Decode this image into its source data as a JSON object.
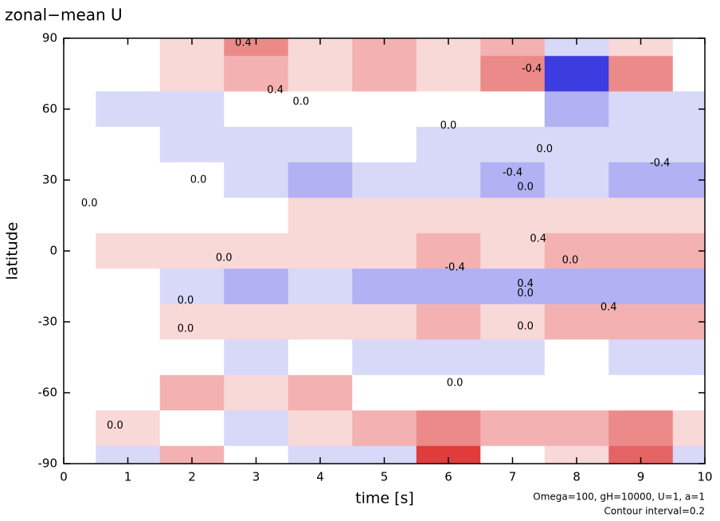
{
  "chart_data": {
    "type": "heatmap",
    "title": "zonal−mean U",
    "x_label": "time [s]",
    "y_label": "latitude",
    "annotations": [
      "Omega=100, gH=10000, U=1, a=1",
      "Contour interval=0.2"
    ],
    "xlim": [
      0,
      10
    ],
    "ylim": [
      -90,
      90
    ],
    "xticks": [
      0,
      1,
      2,
      3,
      4,
      5,
      6,
      7,
      8,
      9,
      10
    ],
    "yticks": [
      -90,
      -60,
      -30,
      0,
      30,
      60,
      90
    ],
    "positive_color": "#e03c3c",
    "negative_color": "#3c3ce0",
    "x": [
      0,
      1,
      2,
      3,
      4,
      5,
      6,
      7,
      8,
      9,
      10
    ],
    "y": [
      90,
      75,
      60,
      45,
      30,
      15,
      0,
      -15,
      -30,
      -45,
      -60,
      -75,
      -90
    ],
    "z": [
      [
        0,
        0,
        0.2,
        0.6,
        0.2,
        0.4,
        0.2,
        0.4,
        -0.2,
        0.2,
        0
      ],
      [
        0,
        0,
        0.2,
        0.4,
        0.2,
        0.4,
        0.2,
        0.6,
        -1.0,
        0.6,
        0
      ],
      [
        0,
        -0.2,
        -0.2,
        0,
        0,
        0,
        0,
        0,
        -0.4,
        -0.2,
        -0.2
      ],
      [
        0,
        0,
        -0.2,
        -0.2,
        -0.2,
        0,
        -0.2,
        -0.2,
        -0.2,
        -0.2,
        -0.2
      ],
      [
        0,
        0,
        0,
        -0.2,
        -0.4,
        -0.2,
        -0.2,
        -0.4,
        -0.2,
        -0.4,
        -0.4
      ],
      [
        0,
        0,
        0,
        0,
        0.2,
        0.2,
        0.2,
        0.2,
        0.2,
        0.2,
        0.2
      ],
      [
        0,
        0.2,
        0.2,
        0.2,
        0.2,
        0.2,
        0.4,
        0.2,
        0.4,
        0.4,
        0.4
      ],
      [
        0,
        0,
        -0.2,
        -0.4,
        -0.2,
        -0.4,
        -0.4,
        -0.4,
        -0.4,
        -0.4,
        -0.4
      ],
      [
        0,
        0,
        0.2,
        0.2,
        0.2,
        0.2,
        0.4,
        0.2,
        0.4,
        0.4,
        0.4
      ],
      [
        0,
        0,
        0,
        -0.2,
        0,
        -0.2,
        -0.2,
        -0.2,
        0,
        -0.2,
        -0.2
      ],
      [
        0,
        0,
        0.4,
        0.2,
        0.4,
        0,
        0,
        0,
        0,
        0,
        0
      ],
      [
        0,
        0.2,
        0,
        -0.2,
        0.2,
        0.4,
        0.6,
        0.4,
        0.4,
        0.6,
        0.2
      ],
      [
        0,
        -0.2,
        0.4,
        0,
        -0.2,
        -0.2,
        1.0,
        0,
        0.2,
        0.8,
        -0.2
      ]
    ],
    "contour_labels": {
      "x": [
        2.8,
        3.3,
        3.7,
        6.0,
        7.5,
        7.0,
        9.3,
        2.1,
        0.4,
        7.2,
        7.4,
        2.5,
        7.9,
        6.1,
        7.2,
        7.2,
        1.9,
        8.5,
        1.9,
        7.2,
        6.1,
        0.8,
        7.3
      ],
      "y": [
        88,
        68,
        63,
        53,
        43,
        33,
        37,
        30,
        20,
        27,
        5,
        -3,
        -4,
        -7,
        -14,
        -18,
        -21,
        -24,
        -33,
        -32,
        -56,
        -74,
        77
      ],
      "values": [
        0.4,
        0.4,
        0,
        0,
        0,
        -0.4,
        -0.4,
        0,
        0,
        0,
        0.4,
        0,
        0,
        -0.4,
        0.4,
        0,
        0,
        0.4,
        0,
        0,
        0,
        0,
        -0.4
      ],
      "value_labels": [
        "0.4",
        "0.4",
        "0.0",
        "0.0",
        "0.0",
        "-0.4",
        "-0.4",
        "0.0",
        "0.0",
        "0.0",
        "0.4",
        "0.0",
        "0.0",
        "-0.4",
        "0.4",
        "0.0",
        "0.0",
        "0.4",
        "0.0",
        "0.0",
        "0.0",
        "0.0",
        "-0.4"
      ]
    }
  }
}
